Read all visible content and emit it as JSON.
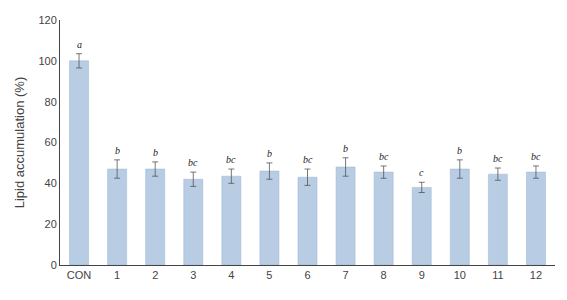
{
  "chart_data": {
    "type": "bar",
    "categories": [
      "CON",
      "1",
      "2",
      "3",
      "4",
      "5",
      "6",
      "7",
      "8",
      "9",
      "10",
      "11",
      "12"
    ],
    "values": [
      100,
      47,
      47,
      42,
      43.5,
      46,
      43,
      48,
      45.5,
      38,
      47,
      44.5,
      45.5
    ],
    "errors": [
      3.5,
      4.5,
      3.5,
      3.5,
      3.5,
      4.0,
      4.0,
      4.5,
      3.0,
      2.5,
      4.5,
      3.0,
      3.0
    ],
    "annotations": [
      "a",
      "b",
      "b",
      "bc",
      "bc",
      "b",
      "bc",
      "b",
      "bc",
      "c",
      "b",
      "bc",
      "bc"
    ],
    "color": "#b8cce4",
    "ylabel": "Lipid accumulation (%)",
    "ylim": [
      0,
      120
    ],
    "yticks": [
      0,
      20,
      40,
      60,
      80,
      100,
      120
    ],
    "grid": false
  }
}
